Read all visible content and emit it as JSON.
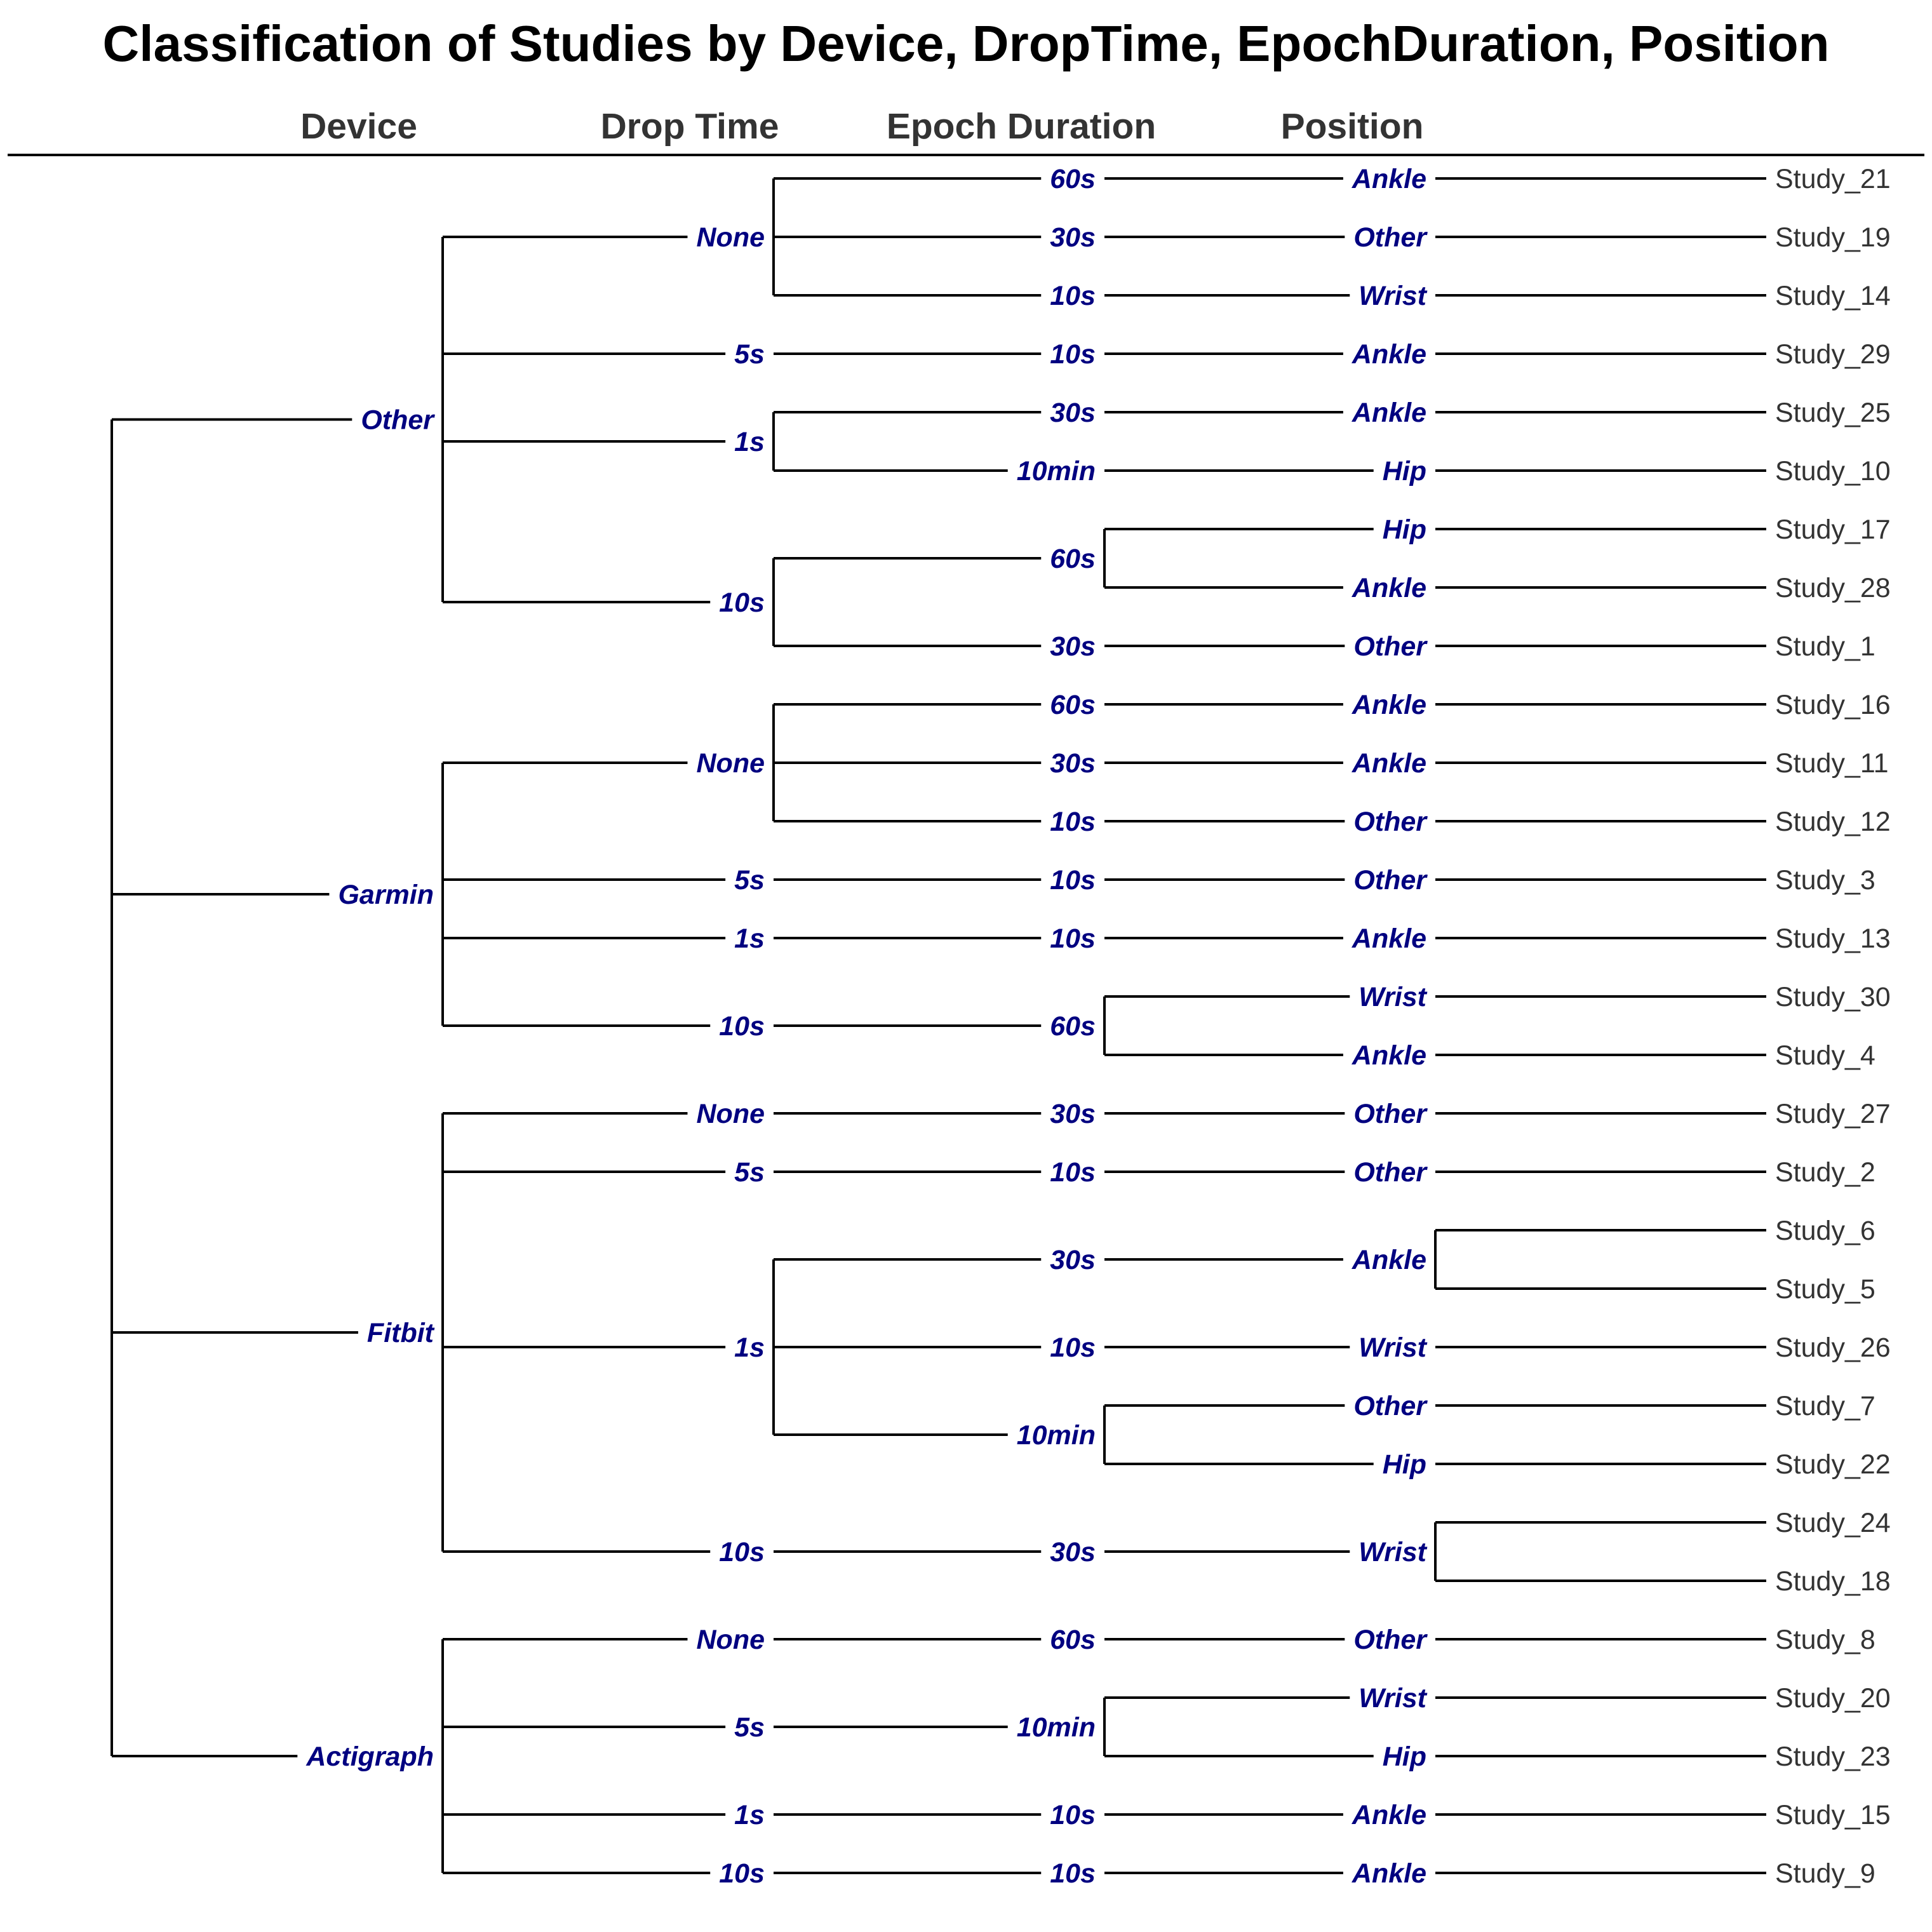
{
  "title": "Classification of Studies by Device, DropTime, EpochDuration, Position",
  "columns": [
    "Device",
    "Drop Time",
    "Epoch Duration",
    "Position"
  ],
  "tree": [
    {
      "label": "Other",
      "children": [
        {
          "label": "None",
          "children": [
            {
              "label": "60s",
              "children": [
                {
                  "label": "Ankle",
                  "children": [
                    "Study_21"
                  ]
                }
              ]
            },
            {
              "label": "30s",
              "children": [
                {
                  "label": "Other",
                  "children": [
                    "Study_19"
                  ]
                }
              ]
            },
            {
              "label": "10s",
              "children": [
                {
                  "label": "Wrist",
                  "children": [
                    "Study_14"
                  ]
                }
              ]
            }
          ]
        },
        {
          "label": "5s",
          "children": [
            {
              "label": "10s",
              "children": [
                {
                  "label": "Ankle",
                  "children": [
                    "Study_29"
                  ]
                }
              ]
            }
          ]
        },
        {
          "label": "1s",
          "children": [
            {
              "label": "30s",
              "children": [
                {
                  "label": "Ankle",
                  "children": [
                    "Study_25"
                  ]
                }
              ]
            },
            {
              "label": "10min",
              "children": [
                {
                  "label": "Hip",
                  "children": [
                    "Study_10"
                  ]
                }
              ]
            }
          ]
        },
        {
          "label": "10s",
          "children": [
            {
              "label": "60s",
              "children": [
                {
                  "label": "Hip",
                  "children": [
                    "Study_17"
                  ]
                },
                {
                  "label": "Ankle",
                  "children": [
                    "Study_28"
                  ]
                }
              ]
            },
            {
              "label": "30s",
              "children": [
                {
                  "label": "Other",
                  "children": [
                    "Study_1"
                  ]
                }
              ]
            }
          ]
        }
      ]
    },
    {
      "label": "Garmin",
      "children": [
        {
          "label": "None",
          "children": [
            {
              "label": "60s",
              "children": [
                {
                  "label": "Ankle",
                  "children": [
                    "Study_16"
                  ]
                }
              ]
            },
            {
              "label": "30s",
              "children": [
                {
                  "label": "Ankle",
                  "children": [
                    "Study_11"
                  ]
                }
              ]
            },
            {
              "label": "10s",
              "children": [
                {
                  "label": "Other",
                  "children": [
                    "Study_12"
                  ]
                }
              ]
            }
          ]
        },
        {
          "label": "5s",
          "children": [
            {
              "label": "10s",
              "children": [
                {
                  "label": "Other",
                  "children": [
                    "Study_3"
                  ]
                }
              ]
            }
          ]
        },
        {
          "label": "1s",
          "children": [
            {
              "label": "10s",
              "children": [
                {
                  "label": "Ankle",
                  "children": [
                    "Study_13"
                  ]
                }
              ]
            }
          ]
        },
        {
          "label": "10s",
          "children": [
            {
              "label": "60s",
              "children": [
                {
                  "label": "Wrist",
                  "children": [
                    "Study_30"
                  ]
                },
                {
                  "label": "Ankle",
                  "children": [
                    "Study_4"
                  ]
                }
              ]
            }
          ]
        }
      ]
    },
    {
      "label": "Fitbit",
      "children": [
        {
          "label": "None",
          "children": [
            {
              "label": "30s",
              "children": [
                {
                  "label": "Other",
                  "children": [
                    "Study_27"
                  ]
                }
              ]
            }
          ]
        },
        {
          "label": "5s",
          "children": [
            {
              "label": "10s",
              "children": [
                {
                  "label": "Other",
                  "children": [
                    "Study_2"
                  ]
                }
              ]
            }
          ]
        },
        {
          "label": "1s",
          "children": [
            {
              "label": "30s",
              "children": [
                {
                  "label": "Ankle",
                  "children": [
                    "Study_6",
                    "Study_5"
                  ]
                }
              ]
            },
            {
              "label": "10s",
              "children": [
                {
                  "label": "Wrist",
                  "children": [
                    "Study_26"
                  ]
                }
              ]
            },
            {
              "label": "10min",
              "children": [
                {
                  "label": "Other",
                  "children": [
                    "Study_7"
                  ]
                },
                {
                  "label": "Hip",
                  "children": [
                    "Study_22"
                  ]
                }
              ]
            }
          ]
        },
        {
          "label": "10s",
          "children": [
            {
              "label": "30s",
              "children": [
                {
                  "label": "Wrist",
                  "children": [
                    "Study_24",
                    "Study_18"
                  ]
                }
              ]
            }
          ]
        }
      ]
    },
    {
      "label": "Actigraph",
      "children": [
        {
          "label": "None",
          "children": [
            {
              "label": "60s",
              "children": [
                {
                  "label": "Other",
                  "children": [
                    "Study_8"
                  ]
                }
              ]
            }
          ]
        },
        {
          "label": "5s",
          "children": [
            {
              "label": "10min",
              "children": [
                {
                  "label": "Wrist",
                  "children": [
                    "Study_20"
                  ]
                },
                {
                  "label": "Hip",
                  "children": [
                    "Study_23"
                  ]
                }
              ]
            }
          ]
        },
        {
          "label": "1s",
          "children": [
            {
              "label": "10s",
              "children": [
                {
                  "label": "Ankle",
                  "children": [
                    "Study_15"
                  ]
                }
              ]
            }
          ]
        },
        {
          "label": "10s",
          "children": [
            {
              "label": "10s",
              "children": [
                {
                  "label": "Ankle",
                  "children": [
                    "Study_9"
                  ]
                }
              ]
            }
          ]
        }
      ]
    }
  ]
}
